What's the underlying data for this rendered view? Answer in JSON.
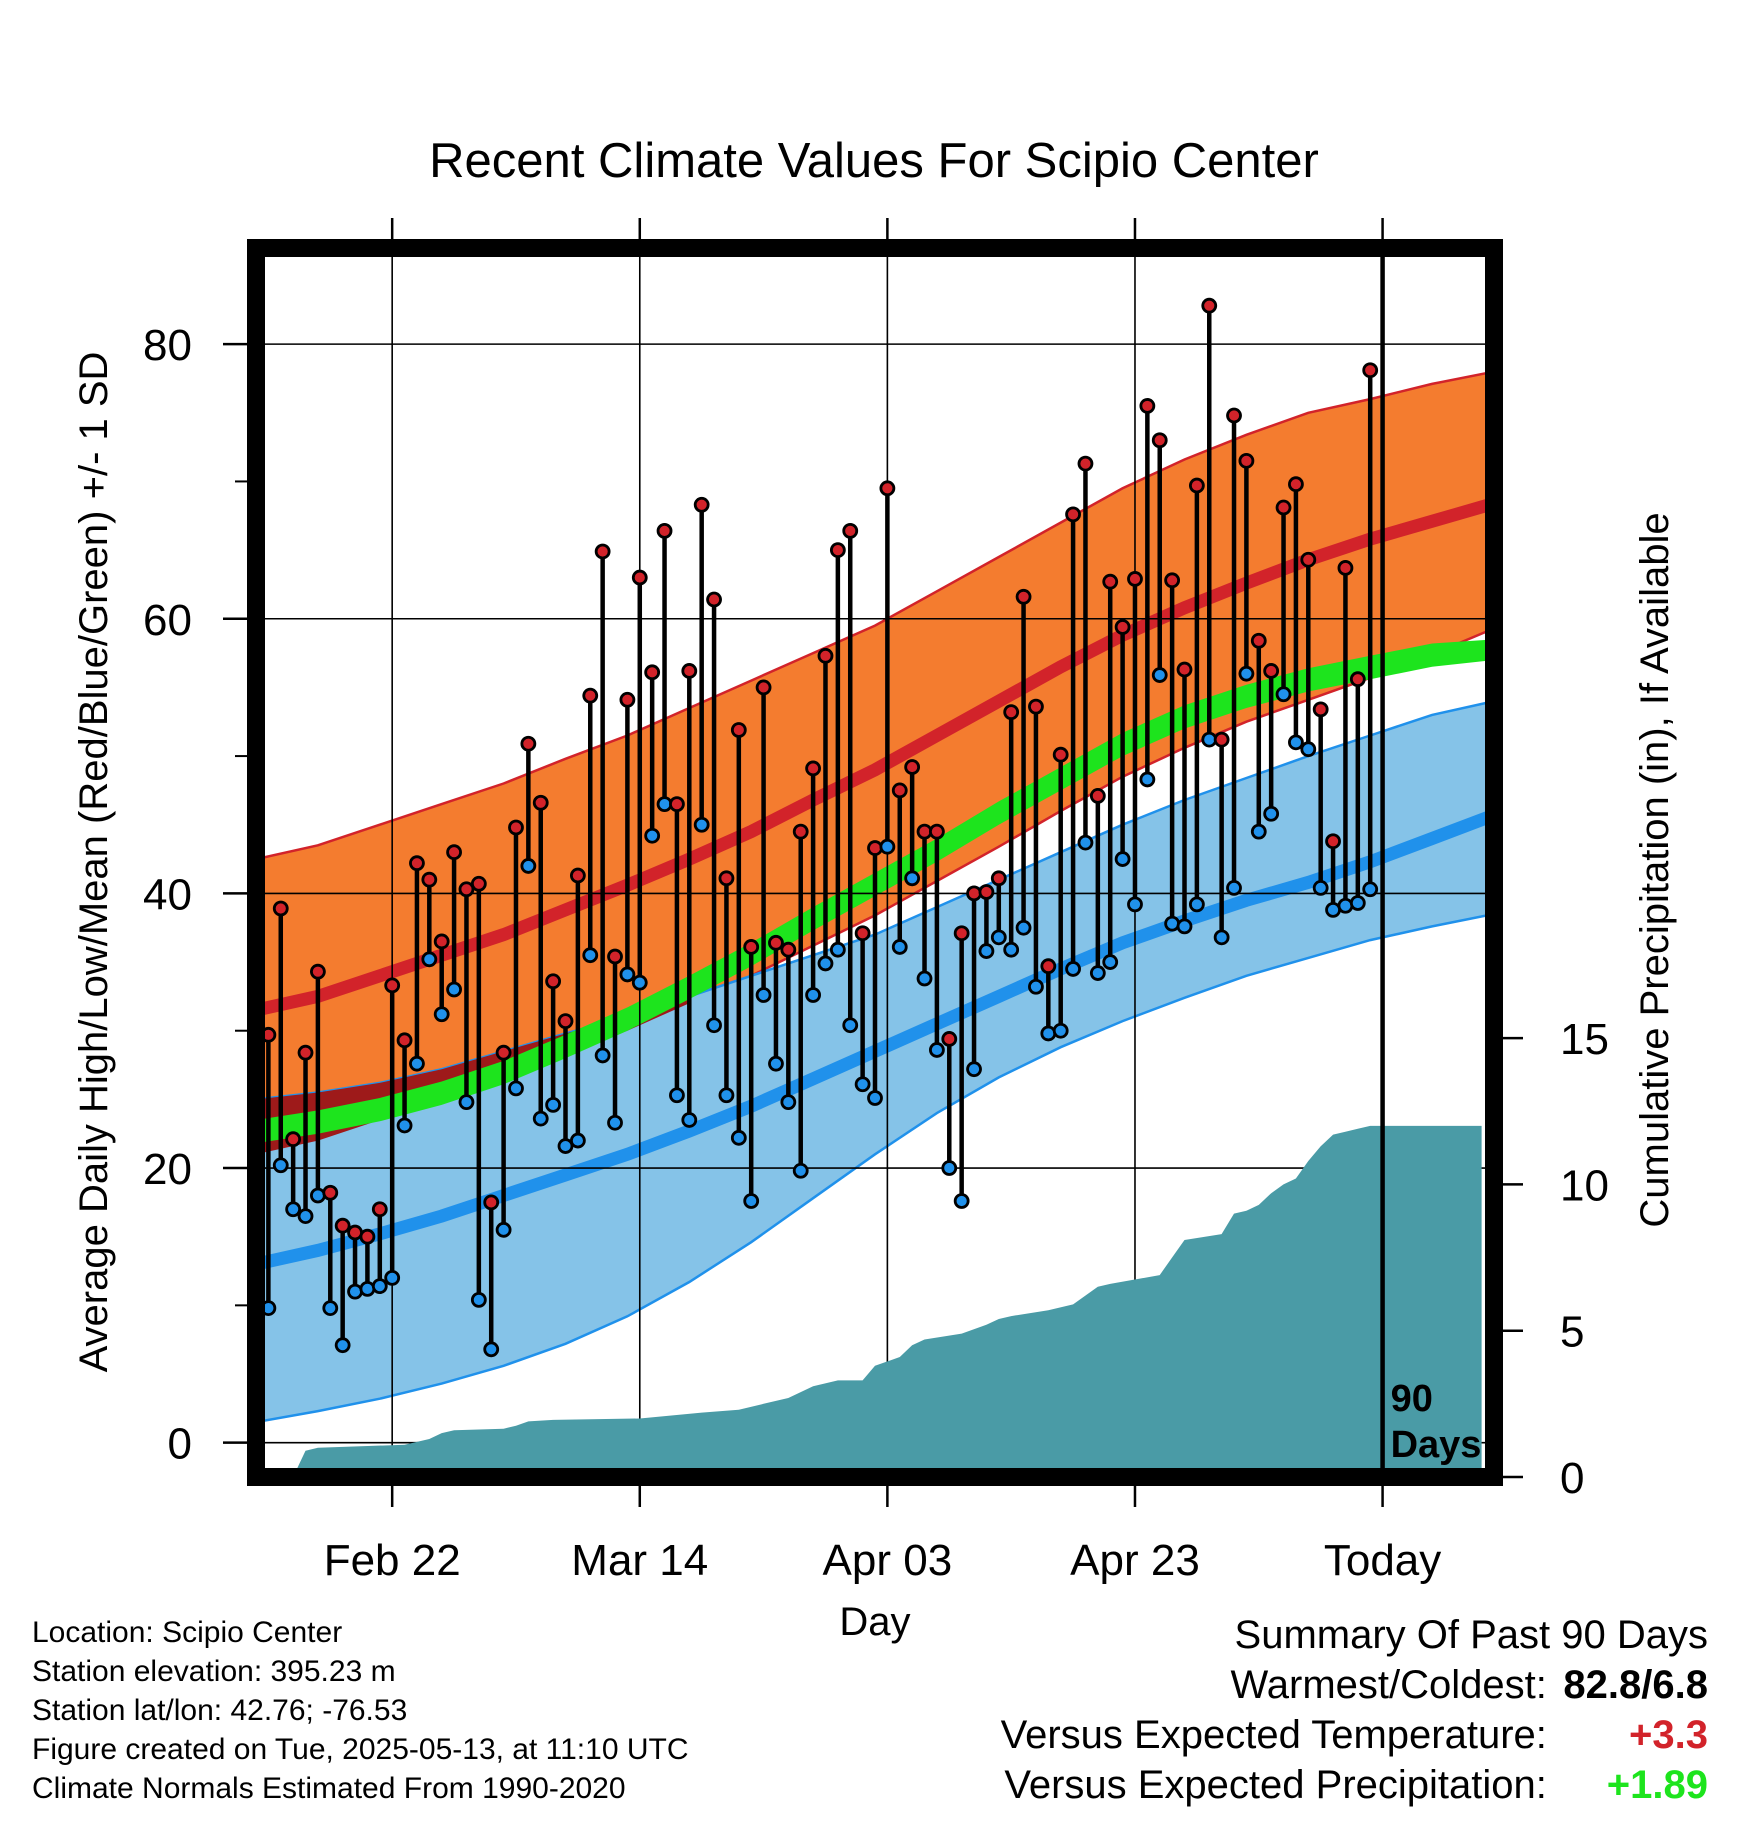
{
  "colors": {
    "high_band": "#f47c2f",
    "high_mean": "#d2232a",
    "low_band": "#85c3e8",
    "low_mean": "#2091eb",
    "overlap": "#9e1a1a",
    "precip_normal": "#1de41d",
    "precip_fill": "#4a9ba6",
    "temp_anomaly": "#d2232a",
    "precip_anomaly": "#1de41d"
  },
  "chart_data": {
    "type": "line",
    "title": "Recent Climate Values For Scipio Center",
    "xlabel": "Day",
    "ylabel": "Average Daily High/Low/Mean (Red/Blue/Green) +/- 1 SD",
    "y2label": "Cumulative Precipitation (in), If Available",
    "x_ticks": [
      {
        "day": 10,
        "label": "Feb 22"
      },
      {
        "day": 30,
        "label": "Mar 14"
      },
      {
        "day": 50,
        "label": "Apr 03"
      },
      {
        "day": 70,
        "label": "Apr 23"
      },
      {
        "day": 90,
        "label": "Today"
      }
    ],
    "today_day": 90,
    "today_label": [
      "90",
      "Days"
    ],
    "xlim": [
      -1,
      99
    ],
    "ylim": [
      -2.5,
      87
    ],
    "y_ticks": [
      0,
      20,
      40,
      60,
      80
    ],
    "y2lim": [
      0,
      42
    ],
    "y2_ticks": [
      0,
      5,
      10,
      15
    ],
    "grid": true,
    "normals": {
      "days": [
        -1,
        4,
        9,
        14,
        19,
        24,
        29,
        34,
        39,
        44,
        49,
        54,
        59,
        64,
        69,
        74,
        79,
        84,
        89,
        94,
        99
      ],
      "high_mean": [
        31.5,
        32.5,
        34,
        35.5,
        37,
        38.8,
        40.6,
        42.5,
        44.5,
        46.8,
        49,
        51.5,
        54,
        56.5,
        58.8,
        60.8,
        62.6,
        64.3,
        65.8,
        67.1,
        68.4
      ],
      "high_upper": [
        42.5,
        43.5,
        45,
        46.5,
        48,
        49.8,
        51.5,
        53.5,
        55.5,
        57.5,
        59.5,
        62,
        64.5,
        67,
        69.5,
        71.6,
        73.4,
        75,
        76,
        77.1,
        78
      ],
      "high_lower": [
        21,
        22,
        23.5,
        25,
        26.5,
        28.2,
        30,
        32,
        34,
        36.2,
        38.4,
        40.9,
        43.4,
        46,
        48.5,
        50.6,
        52.5,
        54.1,
        55.7,
        57.4,
        59.3
      ],
      "low_mean": [
        13,
        14,
        15.2,
        16.5,
        18,
        19.5,
        21,
        22.7,
        24.5,
        26.5,
        28.5,
        30.5,
        32.5,
        34.5,
        36.4,
        38,
        39.5,
        40.8,
        42.3,
        44,
        45.7
      ],
      "low_upper": [
        25,
        25.5,
        26.2,
        27.2,
        28.5,
        29.8,
        31,
        32.5,
        34,
        35.5,
        37,
        39,
        41,
        43,
        45,
        46.8,
        48.4,
        50,
        51.5,
        53,
        54
      ],
      "low_lower": [
        1.5,
        2.3,
        3.2,
        4.3,
        5.6,
        7.2,
        9.2,
        11.7,
        14.6,
        17.8,
        21,
        24,
        26.6,
        28.8,
        30.7,
        32.4,
        34,
        35.3,
        36.6,
        37.6,
        38.5
      ],
      "mean_upper": [
        23.5,
        24.2,
        25.1,
        26.3,
        27.8,
        29.7,
        31.7,
        34,
        36.4,
        39,
        41.5,
        44,
        46.7,
        49.2,
        51.7,
        53.7,
        55.2,
        56.4,
        57.3,
        58.2,
        58.5
      ],
      "mean_lower": [
        21.8,
        22.5,
        23.4,
        24.6,
        26.1,
        28,
        30,
        32.3,
        34.7,
        37.3,
        39.8,
        42.3,
        45,
        47.5,
        50,
        52,
        53.5,
        54.7,
        55.6,
        56.5,
        57
      ]
    },
    "series": [
      {
        "name": "High",
        "values": [
          29.7,
          38.9,
          22.1,
          28.4,
          34.3,
          18.2,
          15.8,
          15.3,
          15,
          17,
          33.3,
          29.3,
          42.2,
          41,
          36.5,
          43,
          40.3,
          40.7,
          17.5,
          28.4,
          44.8,
          50.9,
          46.6,
          33.6,
          30.7,
          41.3,
          54.4,
          64.9,
          35.4,
          54.1,
          63,
          56.1,
          66.4,
          46.5,
          56.2,
          68.3,
          61.4,
          41.1,
          51.9,
          36.1,
          55,
          36.4,
          35.9,
          44.5,
          49.1,
          57.3,
          65,
          66.4,
          37.1,
          43.3,
          69.5,
          47.5,
          49.2,
          44.5,
          44.5,
          29.4,
          37.1,
          40,
          40.1,
          41.1,
          53.2,
          61.6,
          53.6,
          34.7,
          50.1,
          67.6,
          71.3,
          47.1,
          62.7,
          59.4,
          62.9,
          75.5,
          73,
          62.8,
          56.3,
          69.7,
          82.8,
          51.2,
          74.8,
          71.5,
          58.4,
          56.2,
          68.1,
          69.8,
          64.3,
          53.4,
          43.8,
          63.7,
          55.6,
          78.1
        ],
        "color": "#d2232a"
      },
      {
        "name": "Low",
        "values": [
          9.8,
          20.2,
          17,
          16.5,
          18,
          9.8,
          7.1,
          11,
          11.2,
          11.4,
          12,
          23.1,
          27.6,
          35.2,
          31.2,
          33,
          24.8,
          10.4,
          6.8,
          15.5,
          25.8,
          42,
          23.6,
          24.6,
          21.6,
          22,
          35.5,
          28.2,
          23.3,
          34.1,
          33.5,
          44.2,
          46.5,
          25.3,
          23.5,
          45,
          30.4,
          25.3,
          22.2,
          17.6,
          32.6,
          27.6,
          24.8,
          19.8,
          32.6,
          34.9,
          35.9,
          30.4,
          26.1,
          25.1,
          43.4,
          36.1,
          41.1,
          33.8,
          28.6,
          20,
          17.6,
          27.2,
          35.8,
          36.8,
          35.9,
          37.5,
          33.2,
          29.8,
          30,
          34.5,
          43.7,
          34.2,
          35,
          42.5,
          39.2,
          48.3,
          55.9,
          37.8,
          37.6,
          39.2,
          51.2,
          36.8,
          40.4,
          56,
          44.5,
          45.8,
          54.5,
          51,
          50.5,
          40.4,
          38.8,
          39.1,
          39.3,
          40.3
        ],
        "color": "#2091eb"
      },
      {
        "name": "Cumulative Precipitation",
        "days": [
          -1,
          2,
          3,
          4,
          11,
          13,
          14,
          15,
          19,
          20,
          21,
          23,
          30,
          35,
          38,
          40,
          42,
          44,
          46,
          48,
          49,
          51,
          52,
          53,
          56,
          58,
          59,
          60,
          63,
          65,
          67,
          68,
          72,
          73,
          74,
          77,
          78,
          79,
          80,
          81,
          82,
          83,
          84,
          85,
          86,
          87,
          88,
          89,
          98
        ],
        "values": [
          0,
          0,
          0.9,
          1.0,
          1.1,
          1.3,
          1.5,
          1.6,
          1.65,
          1.75,
          1.9,
          1.95,
          2.0,
          2.2,
          2.3,
          2.5,
          2.7,
          3.1,
          3.3,
          3.3,
          3.8,
          4.1,
          4.5,
          4.7,
          4.9,
          5.2,
          5.4,
          5.5,
          5.7,
          5.9,
          6.5,
          6.6,
          6.9,
          7.5,
          8.1,
          8.3,
          9.0,
          9.1,
          9.3,
          9.7,
          10.0,
          10.2,
          10.8,
          11.3,
          11.7,
          11.8,
          11.9,
          12.0,
          12.0
        ],
        "color": "#4a9ba6"
      }
    ]
  },
  "info": {
    "location": "Location: Scipio Center",
    "elevation": "Station elevation: 395.23 m",
    "latlon": "Station lat/lon: 42.76; -76.53",
    "created": "Figure created on Tue, 2025-05-13, at 11:10 UTC",
    "normals": "Climate Normals Estimated From 1990-2020"
  },
  "summary": {
    "title": "Summary Of Past 90 Days",
    "warmest_label": "Warmest/Coldest:",
    "warmest_value": "82.8/6.8",
    "temp_label": "Versus Expected Temperature:",
    "temp_value": "+3.3",
    "precip_label": "Versus Expected Precipitation:",
    "precip_value": "+1.89"
  }
}
